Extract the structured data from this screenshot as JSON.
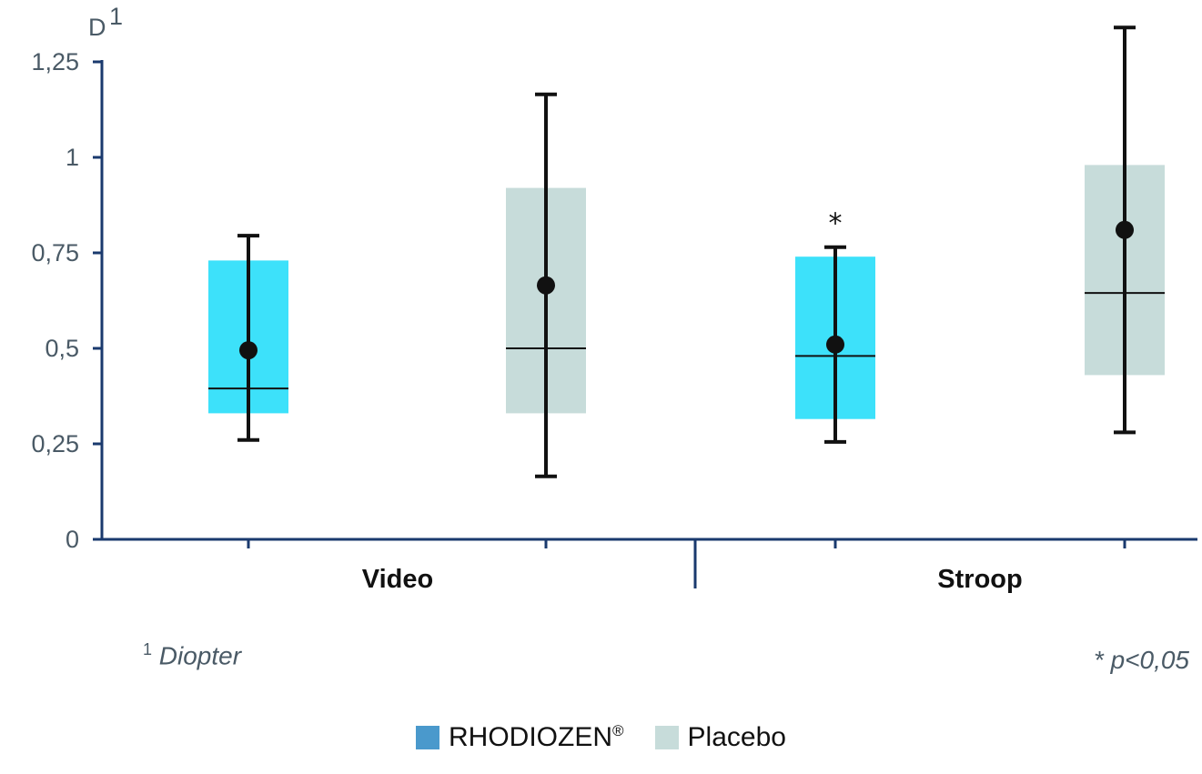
{
  "chart_data": {
    "type": "box",
    "y_unit": "D",
    "y_unit_footnote": "1",
    "ylim": [
      0,
      1.25
    ],
    "y_ticks": [
      {
        "value": 0,
        "label": "0"
      },
      {
        "value": 0.25,
        "label": "0,25"
      },
      {
        "value": 0.5,
        "label": "0,5"
      },
      {
        "value": 0.75,
        "label": "0,75"
      },
      {
        "value": 1,
        "label": "1"
      },
      {
        "value": 1.25,
        "label": "1,25"
      }
    ],
    "categories": [
      "Video",
      "Stroop"
    ],
    "series": [
      {
        "name": "RHODIOZEN",
        "name_mark": "®",
        "color": "#3de1fa",
        "legend_color": "#4a99cc",
        "boxes": [
          {
            "category": "Video",
            "q1": 0.33,
            "median": 0.395,
            "q3": 0.73,
            "mean": 0.495,
            "whisker_low": 0.26,
            "whisker_high": 0.795
          },
          {
            "category": "Stroop",
            "q1": 0.315,
            "median": 0.48,
            "q3": 0.74,
            "mean": 0.51,
            "whisker_low": 0.255,
            "whisker_high": 0.765,
            "annotation": "*"
          }
        ]
      },
      {
        "name": "Placebo",
        "color": "#c7dcda",
        "legend_color": "#c7dcda",
        "boxes": [
          {
            "category": "Video",
            "q1": 0.33,
            "median": 0.5,
            "q3": 0.92,
            "mean": 0.665,
            "whisker_low": 0.165,
            "whisker_high": 1.165
          },
          {
            "category": "Stroop",
            "q1": 0.43,
            "median": 0.645,
            "q3": 0.98,
            "mean": 0.81,
            "whisker_low": 0.28,
            "whisker_high": 1.34
          }
        ]
      }
    ],
    "grid": false,
    "legend": "bottom-center"
  },
  "footnotes": {
    "diopter_mark": "1",
    "diopter_text": "Diopter",
    "significance": "* p<0,05"
  },
  "colors": {
    "axis": "#1a3a6e",
    "whisker": "#111111",
    "text": "#4a5a66"
  }
}
